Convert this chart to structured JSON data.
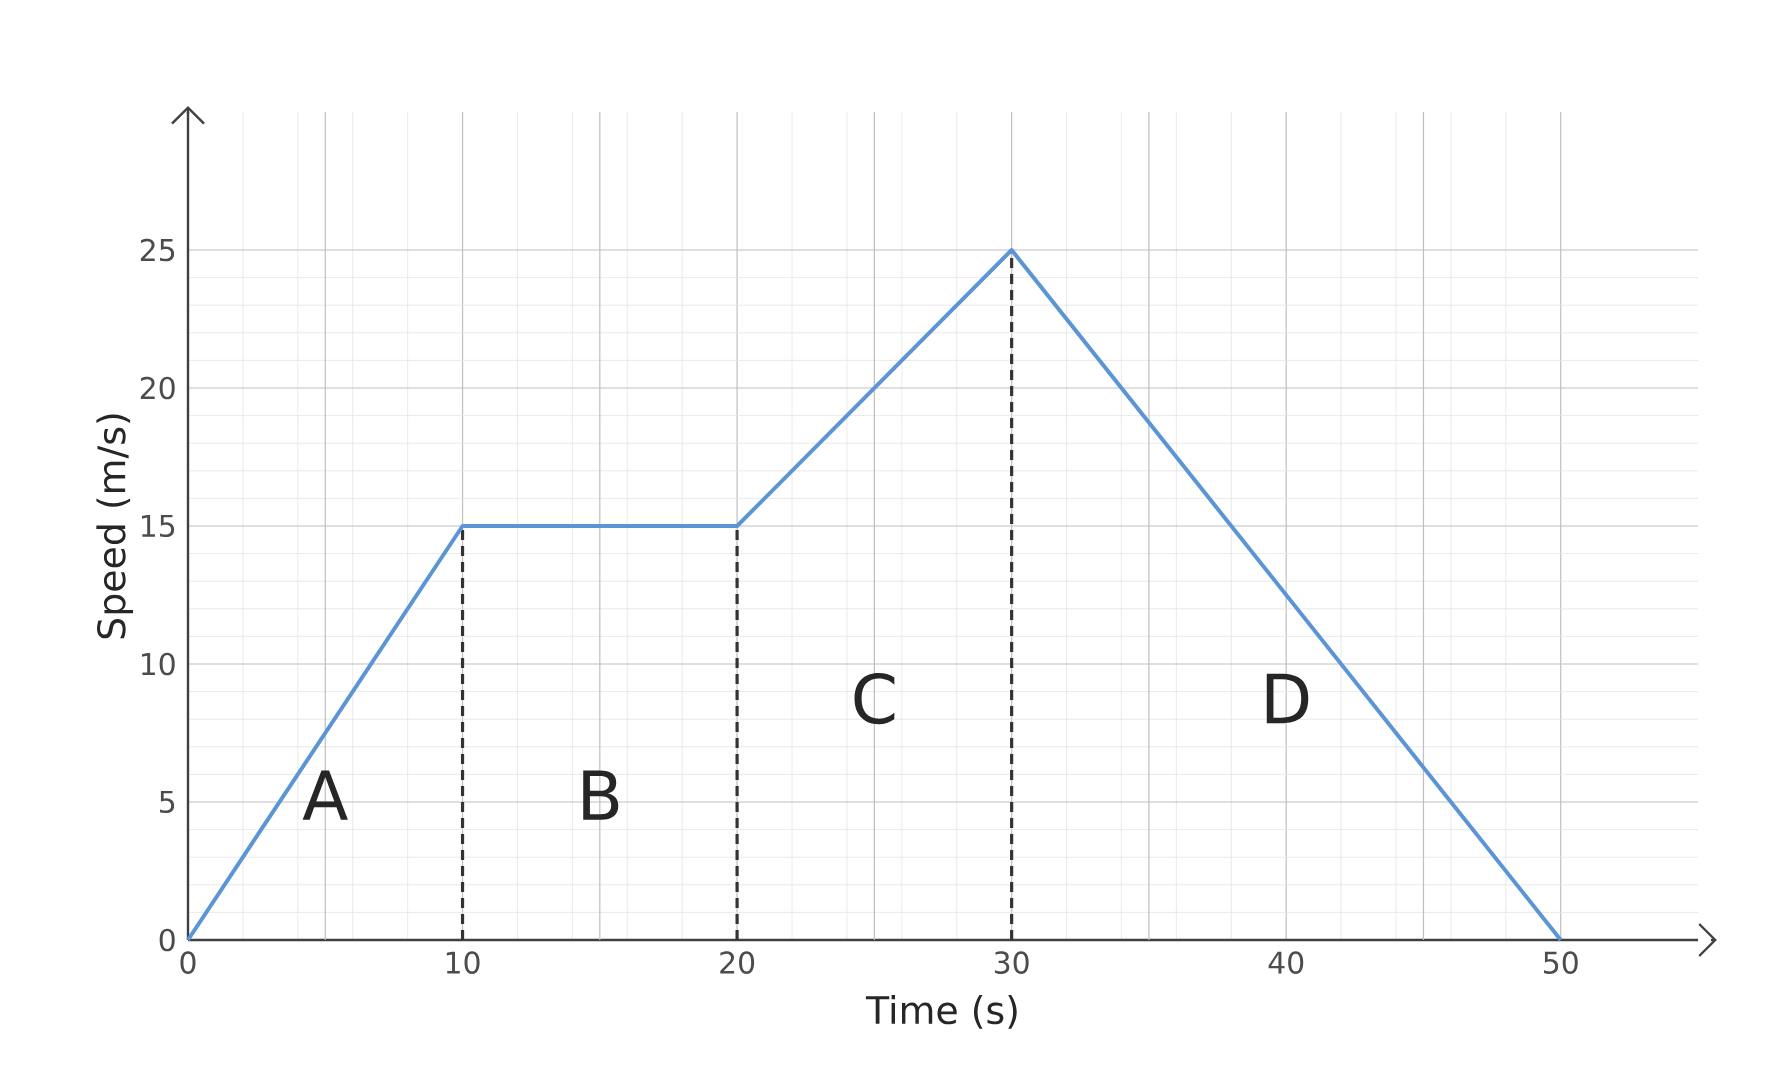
{
  "chart_data": {
    "type": "line",
    "xlabel": "Time (s)",
    "ylabel": "Speed (m/s)",
    "x": [
      0,
      10,
      20,
      30,
      50
    ],
    "series": [
      {
        "color": "#5b95d6",
        "values": [
          0,
          15,
          15,
          25,
          0
        ]
      }
    ],
    "xlim": [
      0,
      55
    ],
    "ylim": [
      0,
      30
    ],
    "xticks": [
      0,
      10,
      20,
      30,
      40,
      50
    ],
    "yticks": [
      0,
      5,
      10,
      15,
      20,
      25
    ],
    "grid": true,
    "marker": "none",
    "line_style": "solid",
    "ref_lines": [
      {
        "axis": "x",
        "value": 10,
        "color": "#333333",
        "line_style": "dashed"
      },
      {
        "axis": "x",
        "value": 20,
        "color": "#333333",
        "line_style": "dashed"
      },
      {
        "axis": "x",
        "value": 30,
        "color": "#333333",
        "line_style": "dashed"
      }
    ],
    "annotations": [
      "A",
      "B",
      "C",
      "D"
    ]
  }
}
